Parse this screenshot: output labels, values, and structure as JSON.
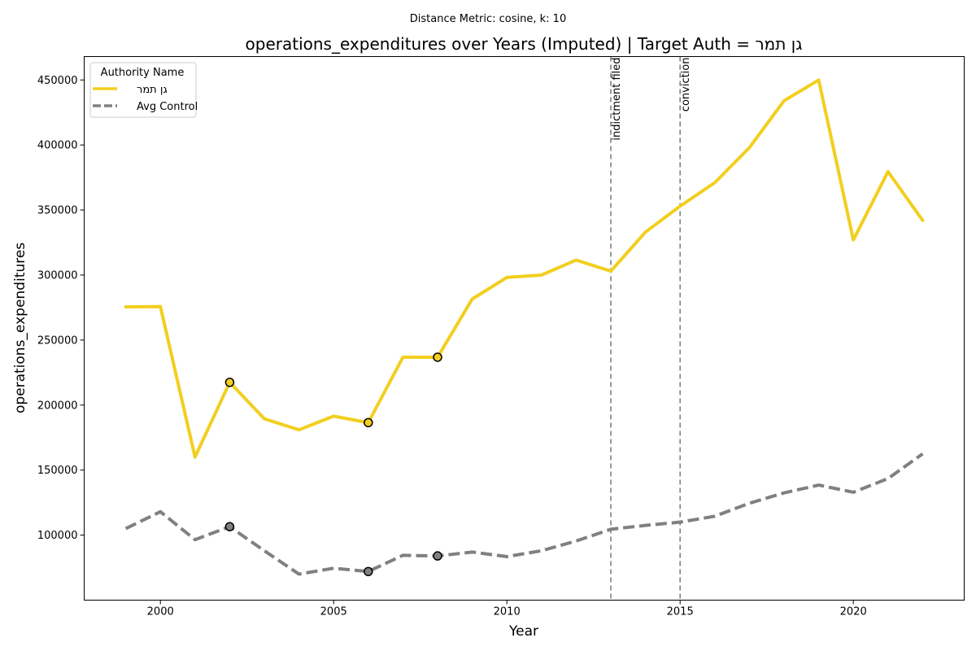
{
  "chart_data": {
    "type": "line",
    "suptitle": "Distance Metric: cosine, k: 10",
    "title": "operations_expenditures over Years (Imputed) | Target Auth = גן תמר",
    "xlabel": "Year",
    "ylabel": "operations_expenditures",
    "xlim": [
      1997.8,
      2023.2
    ],
    "ylim": [
      50000,
      468000
    ],
    "x_ticks": [
      2000,
      2005,
      2010,
      2015,
      2020
    ],
    "y_ticks": [
      100000,
      150000,
      200000,
      250000,
      300000,
      350000,
      400000,
      450000
    ],
    "legend": {
      "title": "Authority Name",
      "position": "upper-left"
    },
    "x": [
      1999,
      2000,
      2001,
      2002,
      2003,
      2004,
      2005,
      2006,
      2007,
      2008,
      2009,
      2010,
      2011,
      2012,
      2013,
      2014,
      2015,
      2016,
      2017,
      2018,
      2019,
      2020,
      2021,
      2022
    ],
    "series": [
      {
        "name": "גן תמר",
        "color": "#f2cf1f",
        "style": "solid",
        "values": [
          275500,
          275800,
          160000,
          217500,
          189500,
          181000,
          191500,
          186500,
          236800,
          236800,
          281500,
          298200,
          300000,
          311500,
          303000,
          333000,
          353000,
          371000,
          398000,
          434000,
          450000,
          327000,
          379500,
          342000
        ],
        "imputed_x": [
          2002,
          2006,
          2008
        ]
      },
      {
        "name": "Avg Control",
        "color": "#808080",
        "style": "dashed",
        "values": [
          105000,
          118000,
          96500,
          106500,
          88000,
          70000,
          74500,
          72000,
          84500,
          84000,
          87000,
          83500,
          88000,
          95500,
          104500,
          107500,
          110000,
          114500,
          124500,
          132500,
          138500,
          133000,
          143500,
          162500
        ],
        "imputed_x": [
          2002,
          2006,
          2008
        ]
      }
    ],
    "events": [
      {
        "x": 2013,
        "label": "indictment filed"
      },
      {
        "x": 2015,
        "label": "conviction"
      }
    ]
  }
}
